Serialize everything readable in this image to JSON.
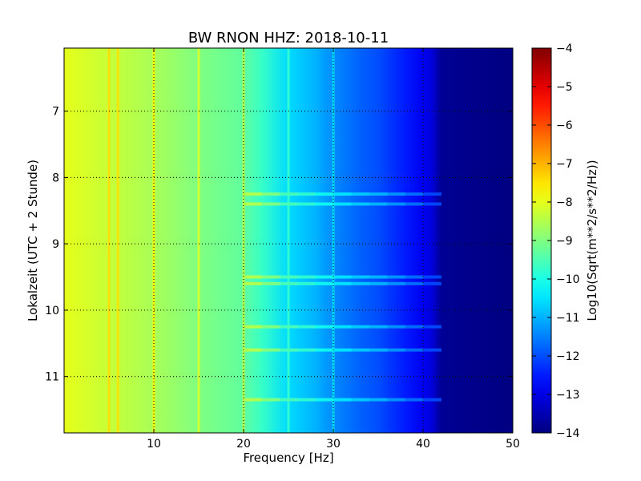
{
  "chart_data": {
    "type": "heatmap",
    "title": "BW RNON HHZ: 2018-10-11",
    "xlabel": "Frequency [Hz]",
    "ylabel": "Lokalzeit (UTC + 2 Stunde)",
    "colorbar_label": "Log10(Sqrt(m**2/s**2/Hz))",
    "x_range": [
      0,
      50
    ],
    "y_range": [
      6.05,
      11.85
    ],
    "y_inverted": true,
    "x_ticks": [
      10,
      20,
      30,
      40,
      50
    ],
    "x_tick_labels": [
      "10",
      "20",
      "30",
      "40",
      "50"
    ],
    "y_ticks": [
      7,
      8,
      9,
      10,
      11
    ],
    "y_tick_labels": [
      "7",
      "8",
      "9",
      "10",
      "11"
    ],
    "color_range": [
      -14,
      -4
    ],
    "colorbar_ticks": [
      -4,
      -5,
      -6,
      -7,
      -8,
      -9,
      -10,
      -11,
      -12,
      -13,
      -14
    ],
    "colorbar_tick_labels": [
      "−4",
      "−5",
      "−6",
      "−7",
      "−8",
      "−9",
      "−10",
      "−11",
      "−12",
      "−13",
      "−14"
    ],
    "colormap": "jet",
    "grid": true,
    "spectrum": {
      "frequency_hz": [
        0,
        5,
        10,
        15,
        20,
        22,
        25,
        28,
        30,
        33,
        35,
        38,
        40,
        41,
        42,
        50
      ],
      "log10_psd": [
        -8.0,
        -8.3,
        -8.6,
        -9.0,
        -9.3,
        -9.7,
        -10.6,
        -11.0,
        -11.4,
        -11.8,
        -12.0,
        -12.5,
        -12.9,
        -13.1,
        -13.8,
        -14.0
      ]
    },
    "spectral_lines_hz": [
      5,
      6,
      10,
      15,
      20,
      25,
      30
    ],
    "time_bands": [
      8.25,
      8.4,
      9.5,
      9.6,
      10.25,
      10.6,
      11.35
    ]
  }
}
